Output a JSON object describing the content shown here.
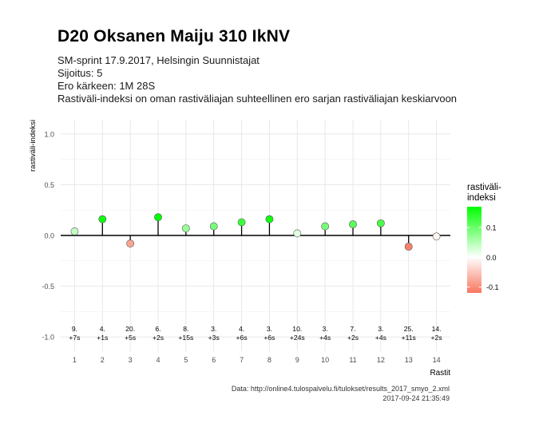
{
  "header": {
    "title": "D20 Oksanen Maiju 310 IkNV",
    "subtitle_lines": [
      "SM-sprint 17.9.2017, Helsingin Suunnistajat",
      "Sijoitus: 5",
      "Ero kärkeen: 1M 28S",
      "Rastiväli-indeksi on oman rastiväliajan suhteellinen ero sarjan rastiväliajan keskiarvoon"
    ]
  },
  "caption": {
    "source": "Data: http://online4.tulospalvelu.fi/tulokset/results_2017_smyo_2.xml",
    "timestamp": "2017-09-24 21:35:49"
  },
  "colors": {
    "positive": "#00ff00",
    "neutral": "#ffffff",
    "negative": "#f8765f",
    "grid": "#e6e6e6",
    "zero_line": "#000000"
  },
  "chart_data": {
    "type": "lollipop",
    "xlabel": "Rastit",
    "ylabel": "rastiväli-indeksi",
    "ylim": [
      -1.0,
      1.0
    ],
    "yticks": [
      "1.0",
      "0.5",
      "0.0",
      "-0.5",
      "-1.0"
    ],
    "grid": true,
    "x": [
      1,
      2,
      3,
      4,
      5,
      6,
      7,
      8,
      9,
      10,
      11,
      12,
      13,
      14
    ],
    "values": [
      0.04,
      0.16,
      -0.08,
      0.18,
      0.07,
      0.09,
      0.13,
      0.16,
      0.02,
      0.09,
      0.11,
      0.12,
      -0.11,
      -0.01
    ],
    "rank_labels": [
      "9.",
      "4.",
      "20.",
      "6.",
      "8.",
      "3.",
      "4.",
      "3.",
      "10.",
      "3.",
      "7.",
      "3.",
      "25.",
      "14."
    ],
    "diff_labels": [
      "+7s",
      "+1s",
      "+5s",
      "+2s",
      "+15s",
      "+3s",
      "+6s",
      "+6s",
      "+24s",
      "+4s",
      "+2s",
      "+4s",
      "+11s",
      "+2s"
    ],
    "legend": {
      "title_lines": [
        "rastiväli-",
        "indeksi"
      ],
      "ticks": [
        "0.1",
        "0.0",
        "-0.1"
      ],
      "position": "right",
      "range": [
        -0.12,
        0.17
      ]
    }
  }
}
